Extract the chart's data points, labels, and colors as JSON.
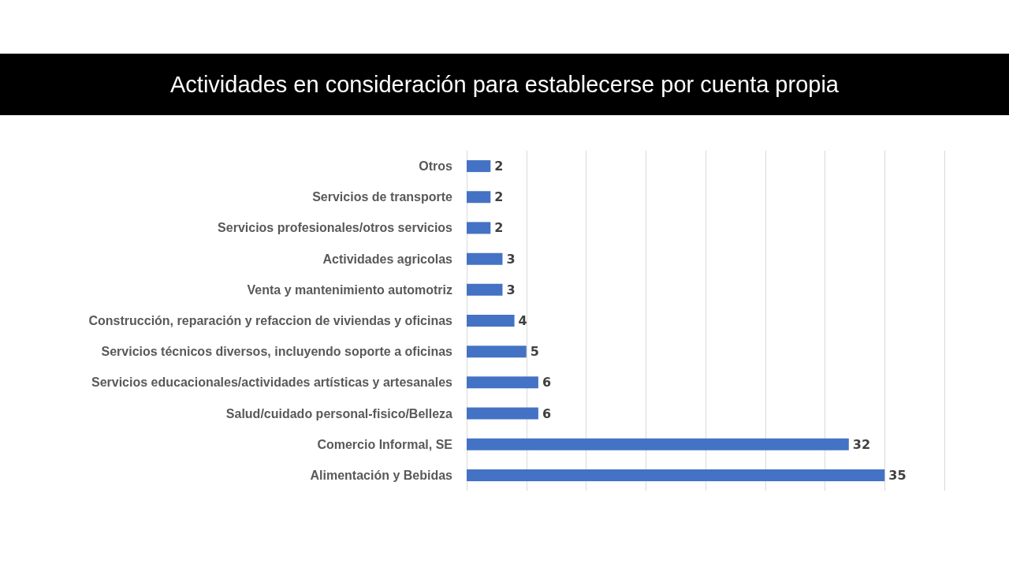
{
  "chart_data": {
    "type": "bar",
    "orientation": "horizontal",
    "title": "Actividades en consideración para establecerse por cuenta propia",
    "categories": [
      "Otros",
      "Servicios de transporte",
      "Servicios profesionales/otros servicios",
      "Actividades agricolas",
      "Venta y mantenimiento automotriz",
      "Construcción, reparación y refaccion de viviendas y oficinas",
      "Servicios técnicos diversos, incluyendo soporte a oficinas",
      "Servicios educacionales/actividades artísticas y artesanales",
      "Salud/cuidado personal-fisico/Belleza",
      "Comercio Informal, SE",
      "Alimentación y Bebidas"
    ],
    "values": [
      2,
      2,
      2,
      3,
      3,
      4,
      5,
      6,
      6,
      32,
      35
    ],
    "color": "#4472c4",
    "xlim": [
      0,
      40
    ],
    "xticks": [
      {
        "value": 0,
        "label": null
      },
      {
        "value": 5,
        "label": null
      },
      {
        "value": 10,
        "label": null
      },
      {
        "value": 15,
        "label": null
      },
      {
        "value": 20,
        "label": null
      },
      {
        "value": 25,
        "label": null
      },
      {
        "value": 30,
        "label": null
      },
      {
        "value": 35,
        "label": null
      },
      {
        "value": 40,
        "label": null
      }
    ],
    "grid": "x",
    "tick_labels": "y",
    "data_labels": true
  }
}
